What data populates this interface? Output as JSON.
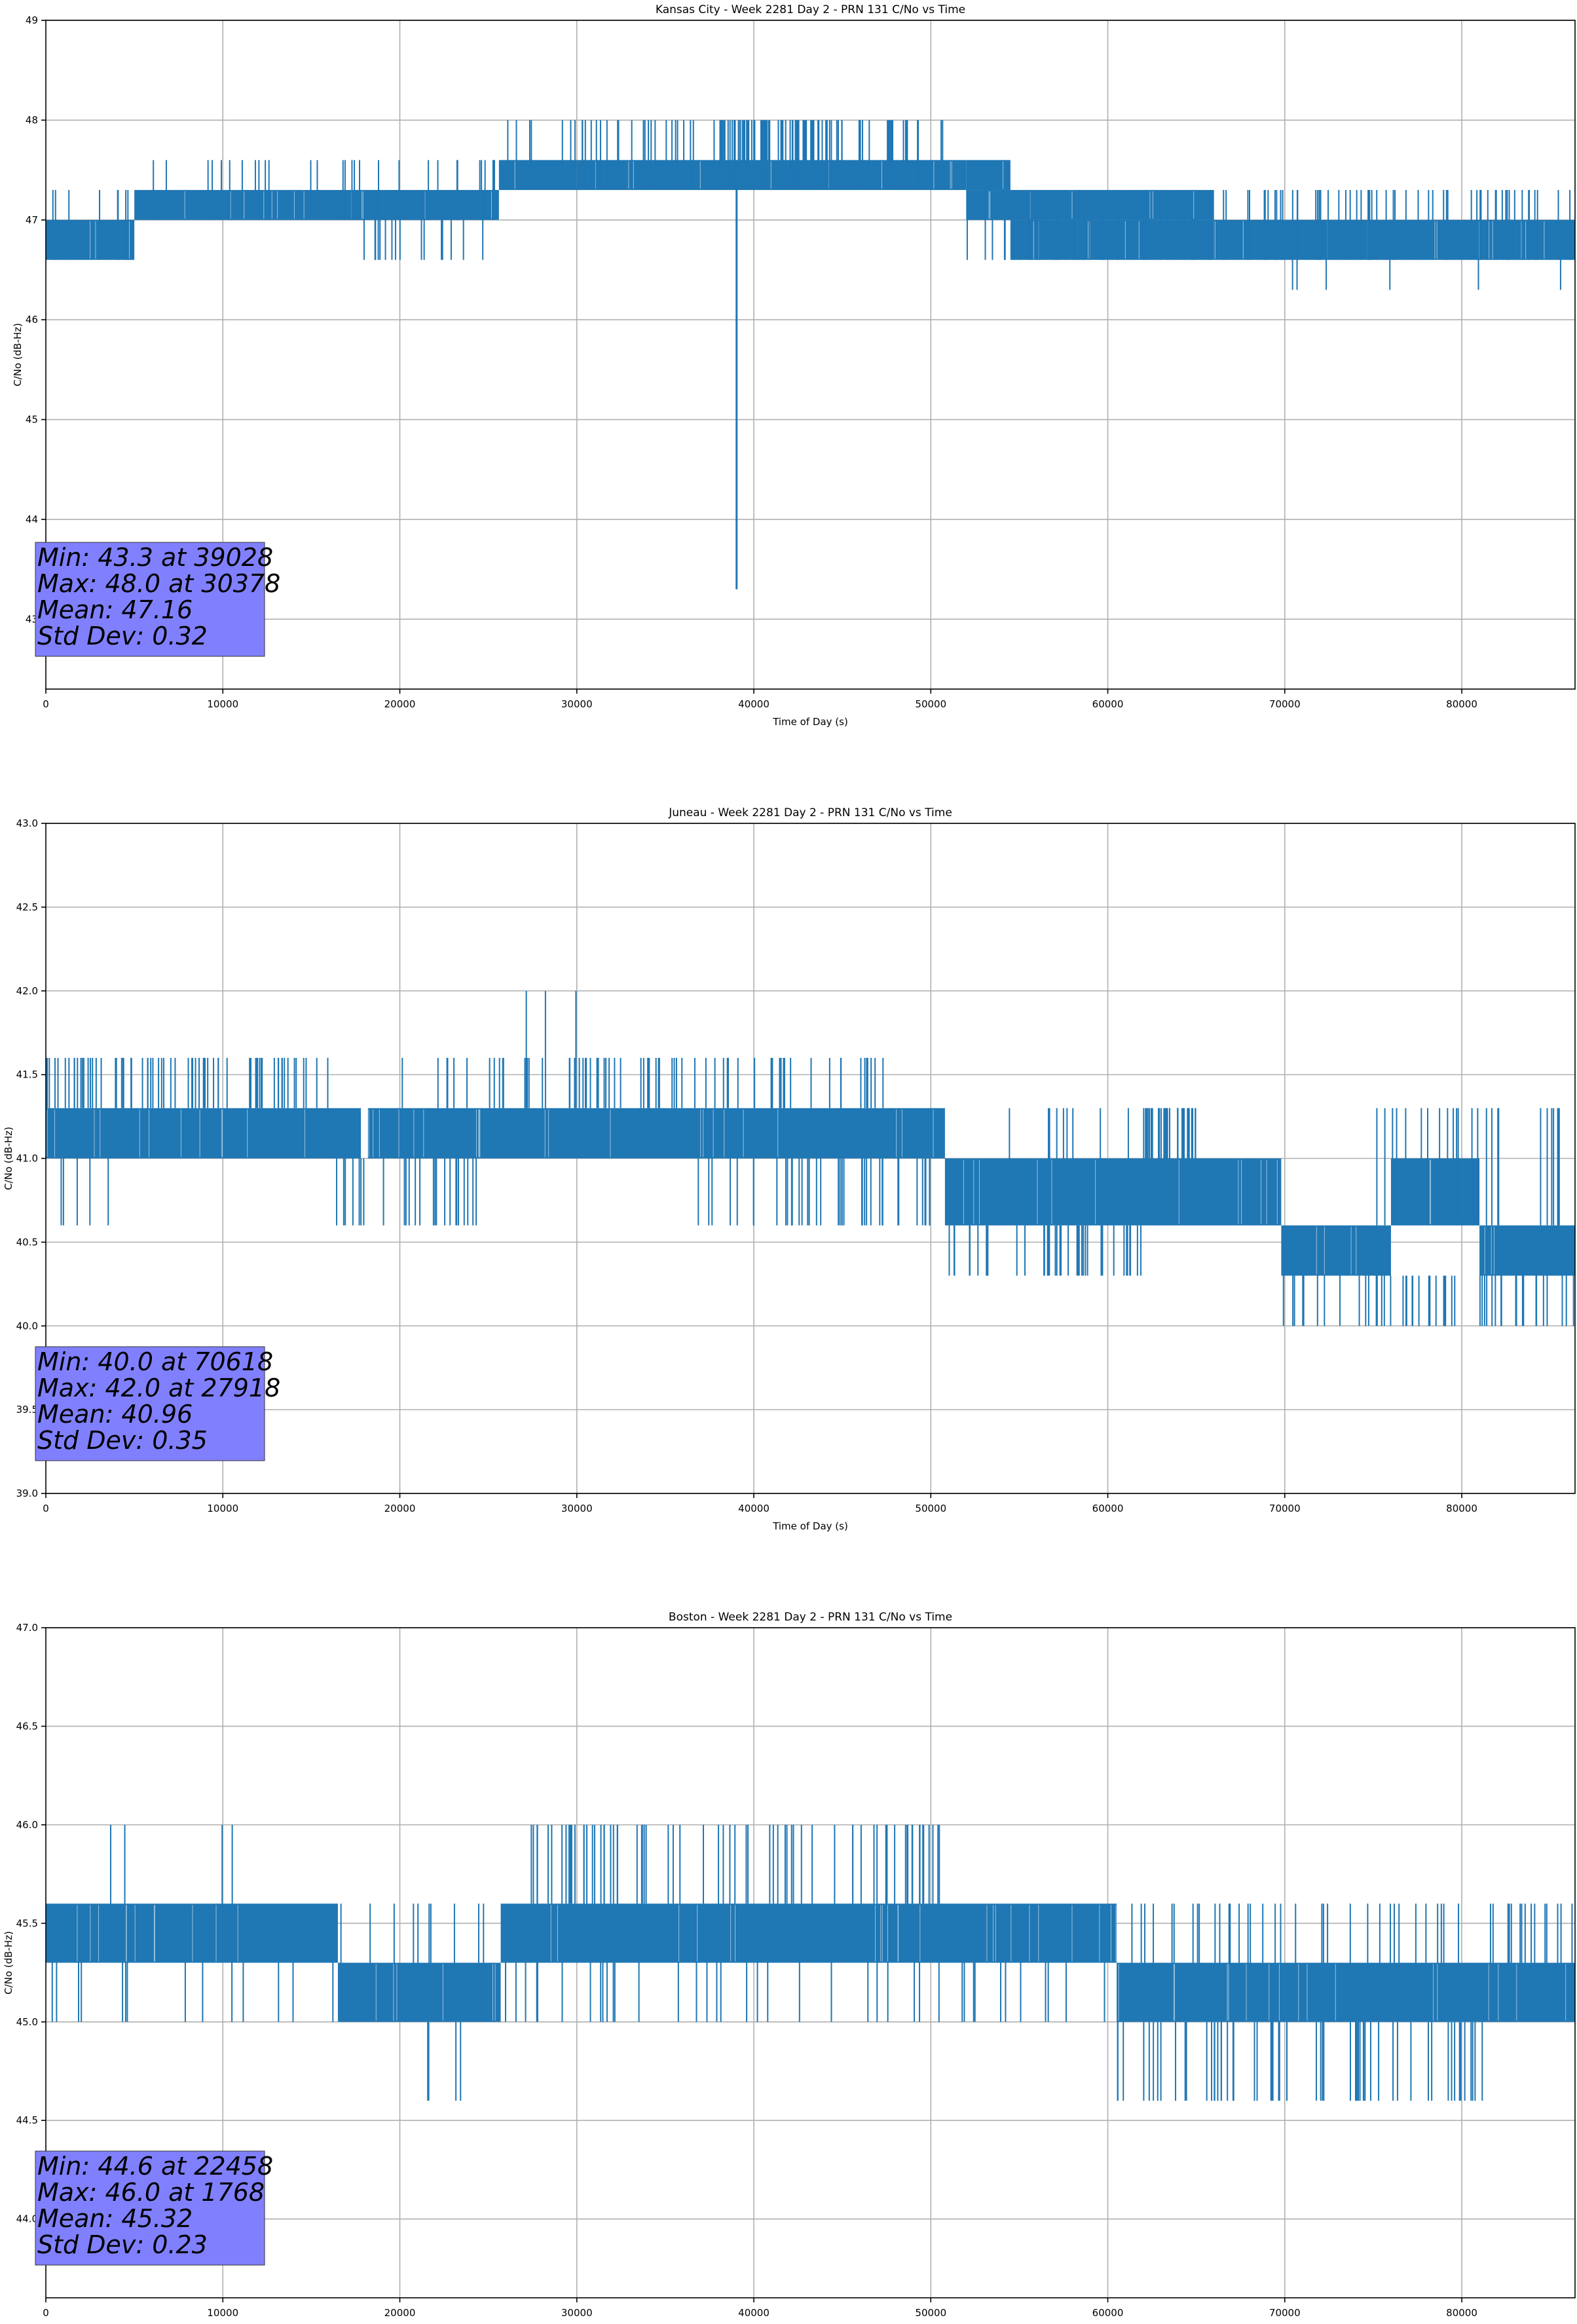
{
  "chart_data": [
    {
      "type": "line",
      "title": "Kansas City - Week 2281 Day 2 - PRN 131 C/No vs Time",
      "xlabel": "Time of Day (s)",
      "ylabel": "C/No (dB-Hz)",
      "xlim": [
        0,
        86400
      ],
      "ylim": [
        42.3,
        49
      ],
      "xticks": [
        0,
        10000,
        20000,
        30000,
        40000,
        50000,
        60000,
        70000,
        80000
      ],
      "yticks": [
        43,
        44,
        45,
        46,
        47,
        48,
        49
      ],
      "ytick_labels": [
        "43",
        "44",
        "45",
        "46",
        "47",
        "48",
        "49"
      ],
      "grid": true,
      "line_color": "#1f77b4",
      "stats_box_color": "#8080ff",
      "stats": [
        "Min: 43.3 at 39028",
        "Max: 48.0 at 30378",
        "Mean: 47.16",
        "Std Dev: 0.32"
      ],
      "bands": [
        {
          "x0": 0,
          "x1": 5000,
          "lo": 46.6,
          "hi": 47.0
        },
        {
          "x0": 5000,
          "x1": 25600,
          "lo": 47.0,
          "hi": 47.3
        },
        {
          "x0": 25600,
          "x1": 30000,
          "lo": 47.3,
          "hi": 47.6
        },
        {
          "x0": 30000,
          "x1": 52000,
          "lo": 47.3,
          "hi": 47.6
        },
        {
          "x0": 52000,
          "x1": 54500,
          "lo": 47.3,
          "hi": 47.6
        },
        {
          "x0": 52000,
          "x1": 66000,
          "lo": 47.0,
          "hi": 47.3
        },
        {
          "x0": 54500,
          "x1": 66000,
          "lo": 46.6,
          "hi": 47.0
        },
        {
          "x0": 66000,
          "x1": 86400,
          "lo": 46.6,
          "hi": 47.0
        }
      ],
      "spikes": [
        {
          "x0": 0,
          "x1": 5000,
          "lo": 46.6,
          "hi": 47.3,
          "n": 8
        },
        {
          "x0": 5000,
          "x1": 25600,
          "lo": 47.0,
          "hi": 47.6,
          "n": 30
        },
        {
          "x0": 17000,
          "x1": 25600,
          "lo": 46.6,
          "hi": 47.3,
          "n": 16
        },
        {
          "x0": 26000,
          "x1": 51000,
          "lo": 47.3,
          "hi": 48.0,
          "n": 70
        },
        {
          "x0": 38000,
          "x1": 45000,
          "lo": 47.3,
          "hi": 48.0,
          "n": 60
        },
        {
          "x0": 52000,
          "x1": 66000,
          "lo": 46.6,
          "hi": 47.3,
          "n": 40
        },
        {
          "x0": 66000,
          "x1": 86400,
          "lo": 46.6,
          "hi": 47.3,
          "n": 60
        },
        {
          "x0": 69000,
          "x1": 86000,
          "lo": 46.3,
          "hi": 47.0,
          "n": 6
        }
      ],
      "dip": {
        "x": 39028,
        "from": 47.6,
        "to": 43.3
      }
    },
    {
      "type": "line",
      "title": "Juneau - Week 2281 Day 2 - PRN 131 C/No vs Time",
      "xlabel": "Time of Day (s)",
      "ylabel": "C/No (dB-Hz)",
      "xlim": [
        0,
        86400
      ],
      "ylim": [
        39.0,
        43.0
      ],
      "xticks": [
        0,
        10000,
        20000,
        30000,
        40000,
        50000,
        60000,
        70000,
        80000
      ],
      "yticks": [
        39.0,
        39.5,
        40.0,
        40.5,
        41.0,
        41.5,
        42.0,
        42.5,
        43.0
      ],
      "ytick_labels": [
        "39.0",
        "39.5",
        "40.0",
        "40.5",
        "41.0",
        "41.5",
        "42.0",
        "42.5",
        "43.0"
      ],
      "grid": true,
      "line_color": "#1f77b4",
      "stats_box_color": "#8080ff",
      "stats": [
        "Min: 40.0 at 70618",
        "Max: 42.0 at 27918",
        "Mean: 40.96",
        "Std Dev: 0.35"
      ],
      "bands": [
        {
          "x0": 0,
          "x1": 17800,
          "lo": 41.0,
          "hi": 41.3
        },
        {
          "x0": 18200,
          "x1": 50800,
          "lo": 41.0,
          "hi": 41.3
        },
        {
          "x0": 50800,
          "x1": 69800,
          "lo": 40.6,
          "hi": 41.0
        },
        {
          "x0": 69800,
          "x1": 76000,
          "lo": 40.3,
          "hi": 40.6
        },
        {
          "x0": 76000,
          "x1": 81000,
          "lo": 40.6,
          "hi": 41.0
        },
        {
          "x0": 81000,
          "x1": 86400,
          "lo": 40.3,
          "hi": 40.6
        }
      ],
      "spikes": [
        {
          "x0": 0,
          "x1": 16000,
          "lo": 41.3,
          "hi": 41.6,
          "n": 70
        },
        {
          "x0": 0,
          "x1": 4000,
          "lo": 40.6,
          "hi": 41.0,
          "n": 5
        },
        {
          "x0": 16000,
          "x1": 24500,
          "lo": 40.6,
          "hi": 41.0,
          "n": 25
        },
        {
          "x0": 20000,
          "x1": 48000,
          "lo": 41.3,
          "hi": 41.6,
          "n": 70
        },
        {
          "x0": 27000,
          "x1": 30500,
          "lo": 41.3,
          "hi": 42.0,
          "n": 3
        },
        {
          "x0": 36000,
          "x1": 50000,
          "lo": 40.6,
          "hi": 41.0,
          "n": 40
        },
        {
          "x0": 50800,
          "x1": 62000,
          "lo": 40.3,
          "hi": 40.6,
          "n": 40
        },
        {
          "x0": 51000,
          "x1": 66000,
          "lo": 41.0,
          "hi": 41.3,
          "n": 12
        },
        {
          "x0": 62000,
          "x1": 65000,
          "lo": 41.0,
          "hi": 41.3,
          "n": 30
        },
        {
          "x0": 69800,
          "x1": 86400,
          "lo": 40.0,
          "hi": 40.3,
          "n": 50
        },
        {
          "x0": 74000,
          "x1": 86400,
          "lo": 40.6,
          "hi": 41.3,
          "n": 25
        }
      ],
      "dip": null
    },
    {
      "type": "line",
      "title": "Boston - Week 2281 Day 2 - PRN 131 C/No vs Time",
      "xlabel": "Time of Day (s)",
      "ylabel": "C/No (dB-Hz)",
      "xlim": [
        0,
        86400
      ],
      "ylim": [
        43.6,
        47.0
      ],
      "xticks": [
        0,
        10000,
        20000,
        30000,
        40000,
        50000,
        60000,
        70000,
        80000
      ],
      "yticks": [
        44.0,
        44.5,
        45.0,
        45.5,
        46.0,
        46.5,
        47.0
      ],
      "ytick_labels": [
        "44.0",
        "44.5",
        "45.0",
        "45.5",
        "46.0",
        "46.5",
        "47.0"
      ],
      "grid": true,
      "line_color": "#1f77b4",
      "stats_box_color": "#8080ff",
      "stats": [
        "Min: 44.6 at 22458",
        "Max: 46.0 at 1768",
        "Mean: 45.32",
        "Std Dev: 0.23"
      ],
      "bands": [
        {
          "x0": 0,
          "x1": 16500,
          "lo": 45.3,
          "hi": 45.6
        },
        {
          "x0": 16500,
          "x1": 25700,
          "lo": 45.0,
          "hi": 45.3
        },
        {
          "x0": 25700,
          "x1": 60500,
          "lo": 45.3,
          "hi": 45.6
        },
        {
          "x0": 60500,
          "x1": 86400,
          "lo": 45.0,
          "hi": 45.3
        }
      ],
      "spikes": [
        {
          "x0": 0,
          "x1": 16500,
          "lo": 45.0,
          "hi": 45.3,
          "n": 14
        },
        {
          "x0": 1500,
          "x1": 13000,
          "lo": 45.6,
          "hi": 46.0,
          "n": 4
        },
        {
          "x0": 16500,
          "x1": 25700,
          "lo": 45.3,
          "hi": 45.6,
          "n": 10
        },
        {
          "x0": 21500,
          "x1": 24000,
          "lo": 44.6,
          "hi": 45.0,
          "n": 4
        },
        {
          "x0": 27000,
          "x1": 50500,
          "lo": 45.6,
          "hi": 46.0,
          "n": 70
        },
        {
          "x0": 25700,
          "x1": 60500,
          "lo": 45.0,
          "hi": 45.3,
          "n": 40
        },
        {
          "x0": 60500,
          "x1": 86400,
          "lo": 45.3,
          "hi": 45.6,
          "n": 50
        },
        {
          "x0": 60000,
          "x1": 82000,
          "lo": 44.6,
          "hi": 45.0,
          "n": 60
        }
      ],
      "dip": null
    }
  ]
}
